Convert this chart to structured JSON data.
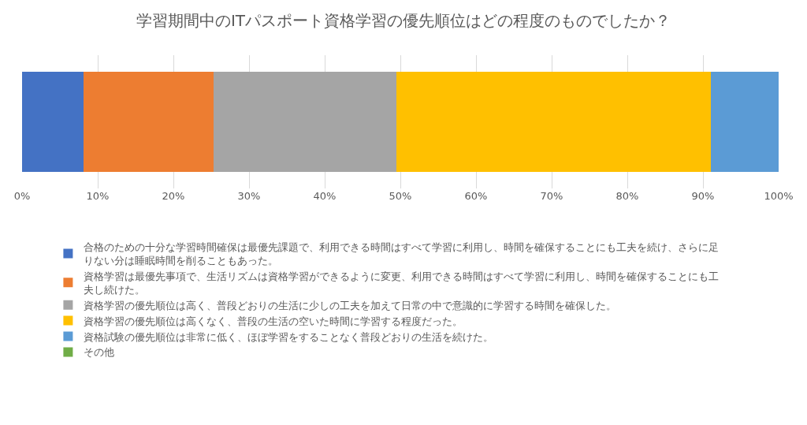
{
  "chart_data": {
    "type": "bar",
    "orientation": "horizontal",
    "stacked": true,
    "title": "学習期間中のITパスポート資格学習の優先順位はどの程度のものでしたか？",
    "categories": [
      null
    ],
    "series": [
      {
        "name": "合格のための十分な学習時間確保は最優先課題で、利用できる時間はすべて学習に利用し、時間を確保することにも工夫を続け、さらに足りない分は睡眠時間を削ることもあった。",
        "color": "#4472c4",
        "values": [
          8.1
        ]
      },
      {
        "name": "資格学習は最優先事項で、生活リズムは資格学習ができるように変更、利用できる時間はすべて学習に利用し、時間を確保することにも工夫し続けた。",
        "color": "#ed7d31",
        "values": [
          17.2
        ]
      },
      {
        "name": "資格学習の優先順位は高く、普段どおりの生活に少しの工夫を加えて日常の中で意識的に学習する時間を確保した。",
        "color": "#a5a5a5",
        "values": [
          24.2
        ]
      },
      {
        "name": "資格学習の優先順位は高くなく、普段の生活の空いた時間に学習する程度だった。",
        "color": "#ffc000",
        "values": [
          41.5
        ]
      },
      {
        "name": "資格試験の優先順位は非常に低く、ほぼ学習をすることなく普段どおりの生活を続けた。",
        "color": "#5b9bd5",
        "values": [
          9.0
        ]
      },
      {
        "name": "その他",
        "color": "#70ad47",
        "values": [
          0
        ]
      }
    ],
    "xlim": [
      0,
      100
    ],
    "xticks": [
      {
        "value": 0,
        "label": "0%"
      },
      {
        "value": 10,
        "label": "10%"
      },
      {
        "value": 20,
        "label": "20%"
      },
      {
        "value": 30,
        "label": "30%"
      },
      {
        "value": 40,
        "label": "40%"
      },
      {
        "value": 50,
        "label": "50%"
      },
      {
        "value": 60,
        "label": "60%"
      },
      {
        "value": 70,
        "label": "70%"
      },
      {
        "value": 80,
        "label": "80%"
      },
      {
        "value": 90,
        "label": "90%"
      },
      {
        "value": 100,
        "label": "100%"
      }
    ],
    "grid": "x",
    "legend": "bottom",
    "tick_labels": "x"
  }
}
